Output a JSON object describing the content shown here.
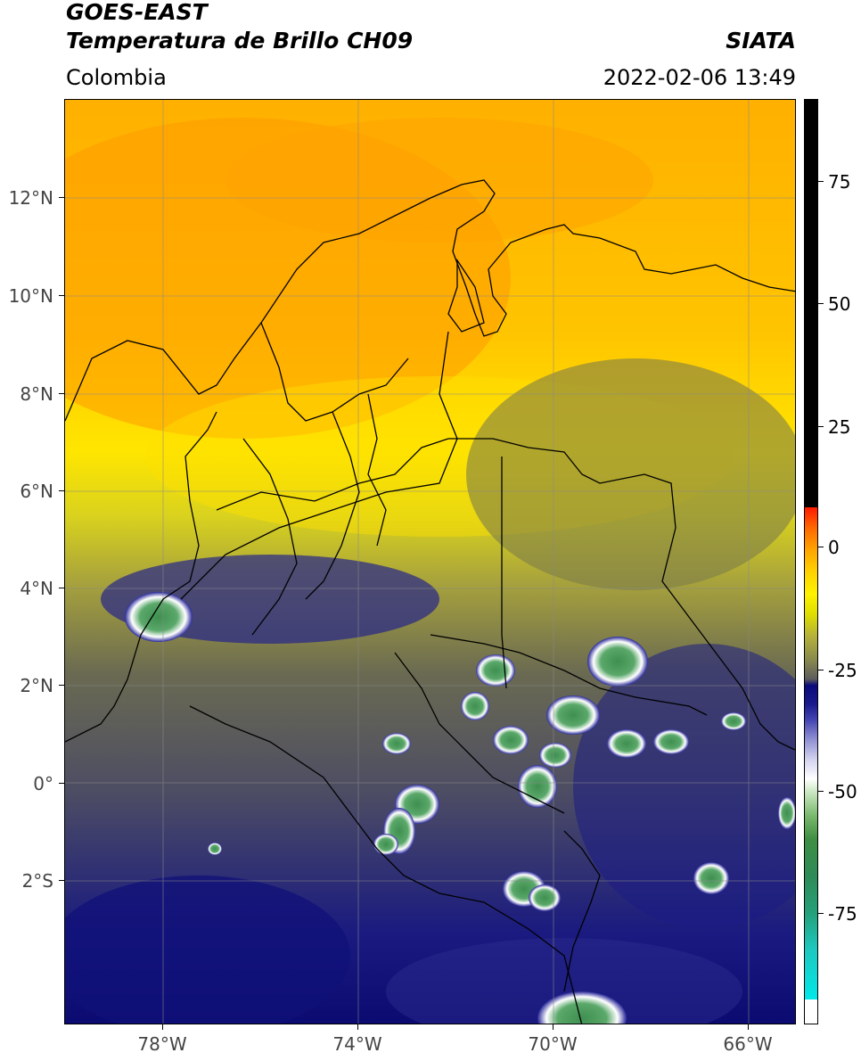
{
  "header": {
    "satellite": "GOES-EAST",
    "product": "Temperatura de Brillo CH09",
    "source": "SIATA",
    "region": "Colombia",
    "datetime": "2022-02-06 13:49"
  },
  "map": {
    "lat_labels": [
      "12°N",
      "10°N",
      "8°N",
      "6°N",
      "4°N",
      "2°N",
      "0°",
      "2°S"
    ],
    "lon_labels": [
      "78°W",
      "74°W",
      "70°W",
      "66°W"
    ],
    "extent": {
      "lon_min": -80,
      "lon_max": -65,
      "lat_min": -5.2,
      "lat_max": 14
    }
  },
  "colorbar": {
    "ticks": [
      "75",
      "50",
      "25",
      "0",
      "-25",
      "-50",
      "-75"
    ],
    "range": [
      -95,
      90
    ]
  }
}
